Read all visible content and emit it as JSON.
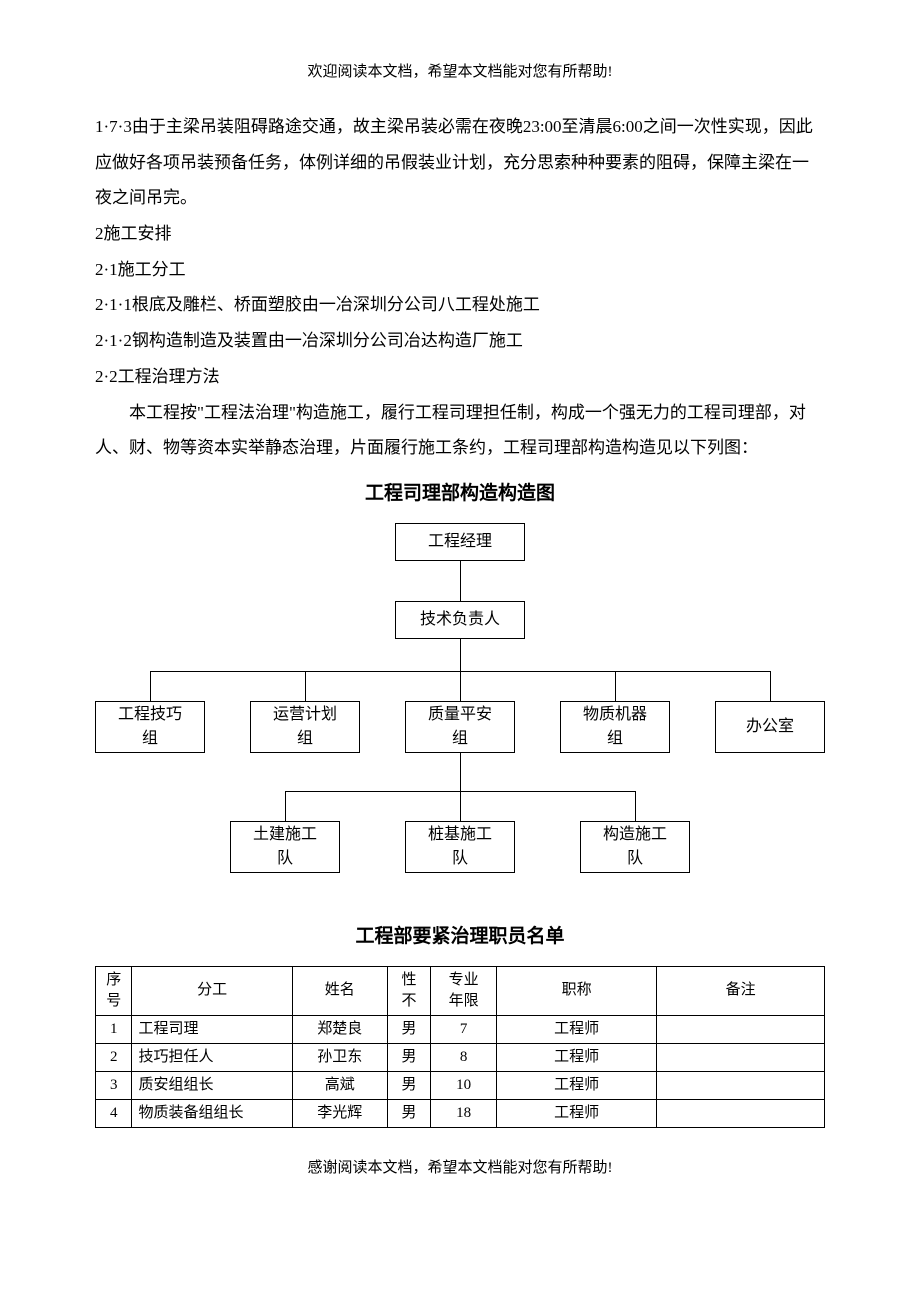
{
  "header_note": "欢迎阅读本文档，希望本文档能对您有所帮助!",
  "footer_note": "感谢阅读本文档，希望本文档能对您有所帮助!",
  "paragraphs": {
    "p1": "1·7·3由于主梁吊装阻碍路途交通，故主梁吊装必需在夜晚23:00至清晨6:00之间一次性实现，因此应做好各项吊装预备任务，体例详细的吊假装业计划，充分思索种种要素的阻碍，保障主梁在一夜之间吊完。",
    "p2": "2施工安排",
    "p3": "2·1施工分工",
    "p4": "2·1·1根底及雕栏、桥面塑胶由一冶深圳分公司八工程处施工",
    "p5": "2·1·2钢构造制造及装置由一冶深圳分公司冶达构造厂施工",
    "p6": "2·2工程治理方法",
    "p7": "本工程按\"工程法治理\"构造施工，履行工程司理担任制，构成一个强无力的工程司理部，对人、财、物等资本实举静态治理，片面履行施工条约，工程司理部构造构造见以下列图："
  },
  "chart_title": "工程司理部构造构造图",
  "org": {
    "top1": "工程经理",
    "top2": "技术负责人",
    "mid": [
      "工程技巧\n组",
      "运营计划\n组",
      "质量平安\n组",
      "物质机器\n组",
      "办公室"
    ],
    "bot": [
      "土建施工\n队",
      "桩基施工\n队",
      "构造施工\n队"
    ],
    "node_border": "#000000",
    "node_bg": "#ffffff",
    "line_color": "#000000",
    "font_size": 16
  },
  "table_title": "工程部要紧治理职员名单",
  "table": {
    "columns": [
      "序\n号",
      "分工",
      "姓名",
      "性\n不",
      "专业\n年限",
      "职称",
      "备注"
    ],
    "col_widths": [
      "5%",
      "22%",
      "13%",
      "6%",
      "9%",
      "22%",
      "23%"
    ],
    "rows": [
      [
        "1",
        "工程司理",
        "郑楚良",
        "男",
        "7",
        "工程师",
        ""
      ],
      [
        "2",
        "技巧担任人",
        "孙卫东",
        "男",
        "8",
        "工程师",
        ""
      ],
      [
        "3",
        "质安组组长",
        "高斌",
        "男",
        "10",
        "工程师",
        ""
      ],
      [
        "4",
        "物质装备组组长",
        "李光辉",
        "男",
        "18",
        "工程师",
        ""
      ]
    ]
  }
}
